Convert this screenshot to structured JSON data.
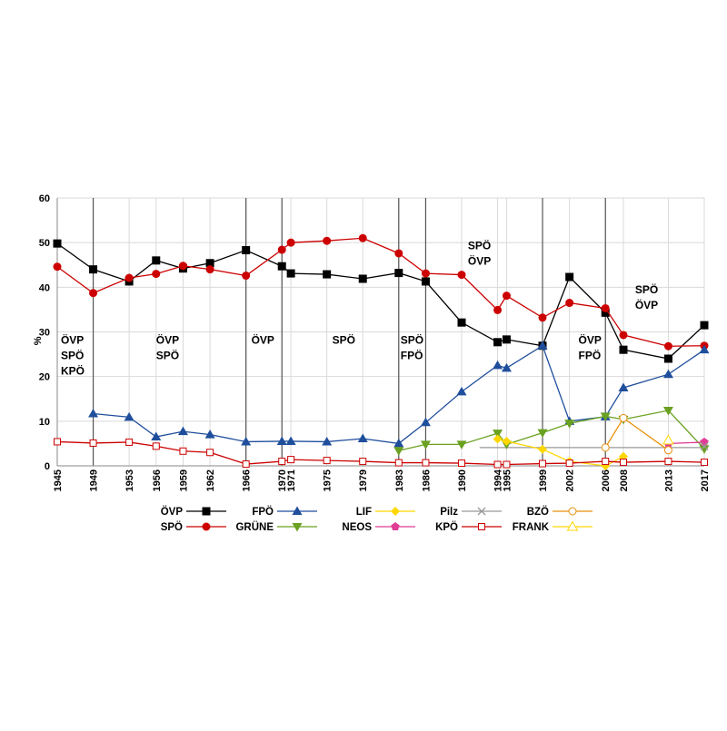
{
  "chart_data": {
    "type": "line",
    "ylabel": "%",
    "ylim": [
      0,
      60
    ],
    "yticks": [
      "0",
      "10",
      "20",
      "30",
      "40",
      "50",
      "60"
    ],
    "xlim": [
      1945,
      2017
    ],
    "xticks": [
      "1945",
      "1949",
      "1953",
      "1956",
      "1959",
      "1962",
      "1966",
      "1970",
      "1971",
      "1975",
      "1979",
      "1983",
      "1986",
      "1990",
      "1994",
      "1995",
      "1999",
      "2002",
      "2006",
      "2008",
      "2013",
      "2017"
    ],
    "govt_lines": [
      1949,
      1966,
      1970,
      1983,
      1986,
      1999,
      2006
    ],
    "coalitions": [
      {
        "x": 1945.4,
        "y": 27.4,
        "lines": [
          "ÖVP",
          "SPÖ",
          "KPÖ"
        ]
      },
      {
        "x": 1956.0,
        "y": 27.4,
        "lines": [
          "ÖVP",
          "SPÖ"
        ]
      },
      {
        "x": 1966.6,
        "y": 27.4,
        "lines": [
          "ÖVP"
        ]
      },
      {
        "x": 1975.6,
        "y": 27.4,
        "lines": [
          "SPÖ"
        ]
      },
      {
        "x": 1983.2,
        "y": 27.4,
        "lines": [
          "SPÖ",
          "FPÖ"
        ]
      },
      {
        "x": 1990.7,
        "y": 48.5,
        "lines": [
          "SPÖ",
          "ÖVP"
        ]
      },
      {
        "x": 2003.0,
        "y": 27.4,
        "lines": [
          "ÖVP",
          "FPÖ"
        ]
      },
      {
        "x": 2009.3,
        "y": 38.6,
        "lines": [
          "SPÖ",
          "ÖVP"
        ]
      }
    ],
    "series": [
      {
        "name": "ÖVP",
        "color": "#000000",
        "marker": "square-filled",
        "x": [
          1945,
          1949,
          1953,
          1956,
          1959,
          1962,
          1966,
          1970,
          1971,
          1975,
          1979,
          1983,
          1986,
          1990,
          1994,
          1995,
          1999,
          2002,
          2006,
          2008,
          2013,
          2017
        ],
        "values": [
          49.8,
          44.0,
          41.3,
          46.0,
          44.2,
          45.4,
          48.3,
          44.7,
          43.1,
          42.9,
          41.9,
          43.2,
          41.3,
          32.1,
          27.7,
          28.3,
          26.9,
          42.3,
          34.3,
          26.0,
          24.0,
          31.5
        ]
      },
      {
        "name": "SPÖ",
        "color": "#cc0000",
        "marker": "circle-filled",
        "x": [
          1945,
          1949,
          1953,
          1956,
          1959,
          1962,
          1966,
          1970,
          1971,
          1975,
          1979,
          1983,
          1986,
          1990,
          1994,
          1995,
          1999,
          2002,
          2006,
          2008,
          2013,
          2017
        ],
        "values": [
          44.6,
          38.7,
          42.1,
          43.0,
          44.8,
          44.0,
          42.6,
          48.4,
          50.0,
          50.4,
          51.0,
          47.6,
          43.1,
          42.8,
          34.9,
          38.1,
          33.2,
          36.5,
          35.3,
          29.3,
          26.8,
          26.9
        ]
      },
      {
        "name": "FPÖ",
        "color": "#1f4e9c",
        "marker": "triangle-filled",
        "x": [
          1949,
          1953,
          1956,
          1959,
          1962,
          1966,
          1970,
          1971,
          1975,
          1979,
          1983,
          1986,
          1990,
          1994,
          1995,
          1999,
          2002,
          2006,
          2008,
          2013,
          2017
        ],
        "values": [
          11.7,
          10.9,
          6.5,
          7.7,
          7.0,
          5.4,
          5.5,
          5.5,
          5.4,
          6.1,
          5.0,
          9.7,
          16.6,
          22.5,
          21.9,
          26.9,
          10.0,
          11.0,
          17.5,
          20.5,
          26.0
        ]
      },
      {
        "name": "GRÜNE",
        "color": "#6aa121",
        "marker": "triangle-down-filled",
        "x": [
          1983,
          1986,
          1990,
          1994,
          1995,
          1999,
          2002,
          2006,
          2008,
          2013,
          2017
        ],
        "values": [
          3.4,
          4.8,
          4.8,
          7.3,
          4.8,
          7.4,
          9.5,
          11.1,
          10.4,
          12.4,
          3.8
        ]
      },
      {
        "name": "LIF",
        "color": "#ffd700",
        "marker": "diamond-filled",
        "x": [
          1994,
          1995,
          1999,
          2002,
          2006,
          2008
        ],
        "values": [
          6.0,
          5.5,
          3.7,
          1.0,
          0.0,
          2.1
        ]
      },
      {
        "name": "NEOS",
        "color": "#e13c96",
        "marker": "pentagon-filled",
        "x": [
          2013,
          2017
        ],
        "values": [
          5.0,
          5.3
        ]
      },
      {
        "name": "Pilz",
        "color": "#999999",
        "marker": "cross",
        "x": [
          2017
        ],
        "values": [
          4.4
        ]
      },
      {
        "name": "KPÖ",
        "color": "#cc0000",
        "marker": "square-open",
        "x": [
          1945,
          1949,
          1953,
          1956,
          1959,
          1962,
          1966,
          1970,
          1971,
          1975,
          1979,
          1983,
          1986,
          1990,
          1994,
          1995,
          1999,
          2002,
          2006,
          2008,
          2013,
          2017
        ],
        "values": [
          5.4,
          5.1,
          5.3,
          4.4,
          3.3,
          3.0,
          0.4,
          1.0,
          1.4,
          1.2,
          1.0,
          0.7,
          0.7,
          0.6,
          0.3,
          0.3,
          0.5,
          0.6,
          1.0,
          0.8,
          1.0,
          0.8
        ]
      },
      {
        "name": "BZÖ",
        "color": "#e8900c",
        "marker": "circle-open",
        "x": [
          2006,
          2008,
          2013
        ],
        "values": [
          4.1,
          10.7,
          3.5
        ]
      },
      {
        "name": "FRANK",
        "color": "#ffd700",
        "marker": "triangle-open",
        "x": [
          2013
        ],
        "values": [
          5.7
        ]
      }
    ],
    "extra_lines": [
      {
        "name": "Pilz",
        "color": "#999999",
        "x": [
          1992,
          2017
        ],
        "values": [
          4.1,
          4.1
        ]
      }
    ]
  },
  "legend": [
    {
      "name": "ÖVP",
      "color": "#000000",
      "marker": "square-filled"
    },
    {
      "name": "FPÖ",
      "color": "#1f4e9c",
      "marker": "triangle-filled"
    },
    {
      "name": "LIF",
      "color": "#ffd700",
      "marker": "diamond-filled"
    },
    {
      "name": "Pilz",
      "color": "#999999",
      "marker": "cross"
    },
    {
      "name": "BZÖ",
      "color": "#e8900c",
      "marker": "circle-open"
    },
    {
      "name": "SPÖ",
      "color": "#cc0000",
      "marker": "circle-filled"
    },
    {
      "name": "GRÜNE",
      "color": "#6aa121",
      "marker": "triangle-down-filled"
    },
    {
      "name": "NEOS",
      "color": "#e13c96",
      "marker": "pentagon-filled"
    },
    {
      "name": "KPÖ",
      "color": "#cc0000",
      "marker": "square-open"
    },
    {
      "name": "FRANK",
      "color": "#ffd700",
      "marker": "triangle-open"
    }
  ]
}
